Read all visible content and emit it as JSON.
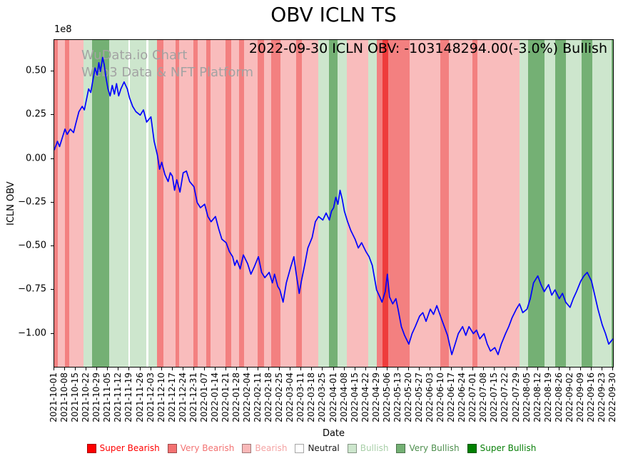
{
  "title": "OBV ICLN TS",
  "annotation": "2022-09-30 ICLN OBV: -103148294.00(-3.0%) Bullish",
  "watermark": {
    "line1": "WuData.io Chart",
    "line2": "Web3 Data & NFT Platform"
  },
  "offset_label": "1e8",
  "axes": {
    "ylabel": "ICLN OBV",
    "xlabel": "Date",
    "yticks": [
      "0.50",
      "0.25",
      "0.00",
      "−0.25",
      "−0.50",
      "−0.75",
      "−1.00"
    ],
    "ytick_values": [
      0.5,
      0.25,
      0,
      -0.25,
      -0.5,
      -0.75,
      -1.0
    ]
  },
  "chart_data": {
    "type": "line",
    "title": "OBV ICLN TS",
    "xlabel": "Date",
    "ylabel": "ICLN OBV",
    "y_scale": "1e8",
    "ylim": [
      -1.19,
      0.68
    ],
    "grid": false,
    "line_color": "#0000ff",
    "x_ticks": [
      "2021-10-01",
      "2021-10-08",
      "2021-10-15",
      "2021-10-22",
      "2021-10-29",
      "2021-11-05",
      "2021-11-12",
      "2021-11-19",
      "2021-11-26",
      "2021-12-03",
      "2021-12-10",
      "2021-12-17",
      "2021-12-24",
      "2021-12-31",
      "2022-01-07",
      "2022-01-14",
      "2022-01-21",
      "2022-01-28",
      "2022-02-04",
      "2022-02-11",
      "2022-02-18",
      "2022-02-25",
      "2022-03-04",
      "2022-03-11",
      "2022-03-18",
      "2022-03-25",
      "2022-04-01",
      "2022-04-08",
      "2022-04-15",
      "2022-04-22",
      "2022-04-29",
      "2022-05-06",
      "2022-05-13",
      "2022-05-20",
      "2022-05-27",
      "2022-06-03",
      "2022-06-10",
      "2022-06-17",
      "2022-06-24",
      "2022-07-01",
      "2022-07-08",
      "2022-07-15",
      "2022-07-22",
      "2022-07-29",
      "2022-08-05",
      "2022-08-12",
      "2022-08-19",
      "2022-08-26",
      "2022-09-02",
      "2022-09-09",
      "2022-09-16",
      "2022-09-23",
      "2022-09-30"
    ],
    "series": [
      {
        "name": "ICLN OBV",
        "last_value": -103148294.0,
        "last_change_pct": -3.0,
        "last_signal": "Bullish",
        "points": [
          [
            0,
            0.05
          ],
          [
            0.3,
            0.1
          ],
          [
            0.5,
            0.07
          ],
          [
            0.8,
            0.13
          ],
          [
            1,
            0.17
          ],
          [
            1.2,
            0.14
          ],
          [
            1.5,
            0.17
          ],
          [
            1.8,
            0.15
          ],
          [
            2,
            0.2
          ],
          [
            2.3,
            0.27
          ],
          [
            2.6,
            0.3
          ],
          [
            2.8,
            0.28
          ],
          [
            3,
            0.34
          ],
          [
            3.2,
            0.4
          ],
          [
            3.4,
            0.38
          ],
          [
            3.6,
            0.45
          ],
          [
            3.8,
            0.52
          ],
          [
            4,
            0.48
          ],
          [
            4.15,
            0.55
          ],
          [
            4.3,
            0.5
          ],
          [
            4.5,
            0.58
          ],
          [
            4.65,
            0.54
          ],
          [
            4.8,
            0.47
          ],
          [
            5,
            0.4
          ],
          [
            5.2,
            0.36
          ],
          [
            5.4,
            0.42
          ],
          [
            5.6,
            0.37
          ],
          [
            5.8,
            0.43
          ],
          [
            6,
            0.36
          ],
          [
            6.2,
            0.4
          ],
          [
            6.5,
            0.44
          ],
          [
            6.8,
            0.4
          ],
          [
            7,
            0.35
          ],
          [
            7.3,
            0.3
          ],
          [
            7.6,
            0.27
          ],
          [
            8,
            0.25
          ],
          [
            8.3,
            0.28
          ],
          [
            8.6,
            0.21
          ],
          [
            9,
            0.24
          ],
          [
            9.3,
            0.1
          ],
          [
            9.6,
            0.02
          ],
          [
            9.8,
            -0.06
          ],
          [
            10,
            -0.02
          ],
          [
            10.3,
            -0.09
          ],
          [
            10.6,
            -0.13
          ],
          [
            10.8,
            -0.08
          ],
          [
            11,
            -0.1
          ],
          [
            11.2,
            -0.18
          ],
          [
            11.4,
            -0.12
          ],
          [
            11.7,
            -0.19
          ],
          [
            12,
            -0.08
          ],
          [
            12.3,
            -0.07
          ],
          [
            12.6,
            -0.13
          ],
          [
            13,
            -0.16
          ],
          [
            13.3,
            -0.25
          ],
          [
            13.6,
            -0.28
          ],
          [
            14,
            -0.26
          ],
          [
            14.3,
            -0.33
          ],
          [
            14.6,
            -0.36
          ],
          [
            15,
            -0.33
          ],
          [
            15.3,
            -0.4
          ],
          [
            15.6,
            -0.46
          ],
          [
            16,
            -0.48
          ],
          [
            16.3,
            -0.53
          ],
          [
            16.6,
            -0.56
          ],
          [
            16.8,
            -0.61
          ],
          [
            17,
            -0.58
          ],
          [
            17.3,
            -0.63
          ],
          [
            17.6,
            -0.55
          ],
          [
            18,
            -0.6
          ],
          [
            18.3,
            -0.66
          ],
          [
            18.6,
            -0.62
          ],
          [
            19,
            -0.56
          ],
          [
            19.3,
            -0.65
          ],
          [
            19.6,
            -0.68
          ],
          [
            20,
            -0.65
          ],
          [
            20.3,
            -0.71
          ],
          [
            20.5,
            -0.66
          ],
          [
            20.8,
            -0.73
          ],
          [
            21,
            -0.75
          ],
          [
            21.3,
            -0.82
          ],
          [
            21.6,
            -0.71
          ],
          [
            22,
            -0.62
          ],
          [
            22.3,
            -0.56
          ],
          [
            22.5,
            -0.65
          ],
          [
            22.8,
            -0.77
          ],
          [
            23,
            -0.7
          ],
          [
            23.3,
            -0.61
          ],
          [
            23.6,
            -0.51
          ],
          [
            24,
            -0.45
          ],
          [
            24.3,
            -0.36
          ],
          [
            24.6,
            -0.33
          ],
          [
            25,
            -0.35
          ],
          [
            25.3,
            -0.31
          ],
          [
            25.6,
            -0.35
          ],
          [
            25.8,
            -0.3
          ],
          [
            26,
            -0.28
          ],
          [
            26.2,
            -0.22
          ],
          [
            26.4,
            -0.26
          ],
          [
            26.6,
            -0.18
          ],
          [
            26.8,
            -0.23
          ],
          [
            27,
            -0.3
          ],
          [
            27.3,
            -0.36
          ],
          [
            27.6,
            -0.41
          ],
          [
            28,
            -0.46
          ],
          [
            28.3,
            -0.51
          ],
          [
            28.6,
            -0.48
          ],
          [
            29,
            -0.53
          ],
          [
            29.3,
            -0.56
          ],
          [
            29.6,
            -0.61
          ],
          [
            30,
            -0.75
          ],
          [
            30.3,
            -0.79
          ],
          [
            30.5,
            -0.82
          ],
          [
            30.8,
            -0.76
          ],
          [
            31,
            -0.66
          ],
          [
            31.2,
            -0.79
          ],
          [
            31.5,
            -0.83
          ],
          [
            31.8,
            -0.8
          ],
          [
            32,
            -0.86
          ],
          [
            32.3,
            -0.96
          ],
          [
            32.6,
            -1.01
          ],
          [
            33,
            -1.06
          ],
          [
            33.3,
            -1
          ],
          [
            33.6,
            -0.96
          ],
          [
            34,
            -0.9
          ],
          [
            34.3,
            -0.88
          ],
          [
            34.6,
            -0.93
          ],
          [
            35,
            -0.86
          ],
          [
            35.3,
            -0.89
          ],
          [
            35.6,
            -0.84
          ],
          [
            36,
            -0.91
          ],
          [
            36.3,
            -0.96
          ],
          [
            36.6,
            -1.01
          ],
          [
            37,
            -1.12
          ],
          [
            37.3,
            -1.06
          ],
          [
            37.6,
            -1
          ],
          [
            38,
            -0.96
          ],
          [
            38.3,
            -1.01
          ],
          [
            38.6,
            -0.96
          ],
          [
            39,
            -1
          ],
          [
            39.3,
            -0.98
          ],
          [
            39.6,
            -1.03
          ],
          [
            40,
            -1
          ],
          [
            40.3,
            -1.06
          ],
          [
            40.6,
            -1.1
          ],
          [
            41,
            -1.08
          ],
          [
            41.3,
            -1.12
          ],
          [
            41.6,
            -1.06
          ],
          [
            42,
            -1
          ],
          [
            42.3,
            -0.96
          ],
          [
            42.6,
            -0.91
          ],
          [
            43,
            -0.86
          ],
          [
            43.3,
            -0.83
          ],
          [
            43.6,
            -0.88
          ],
          [
            44,
            -0.86
          ],
          [
            44.3,
            -0.8
          ],
          [
            44.6,
            -0.71
          ],
          [
            45,
            -0.67
          ],
          [
            45.3,
            -0.72
          ],
          [
            45.6,
            -0.76
          ],
          [
            46,
            -0.72
          ],
          [
            46.3,
            -0.78
          ],
          [
            46.6,
            -0.75
          ],
          [
            47,
            -0.8
          ],
          [
            47.3,
            -0.77
          ],
          [
            47.6,
            -0.82
          ],
          [
            48,
            -0.85
          ],
          [
            48.3,
            -0.8
          ],
          [
            48.6,
            -0.76
          ],
          [
            49,
            -0.7
          ],
          [
            49.3,
            -0.67
          ],
          [
            49.6,
            -0.65
          ],
          [
            50,
            -0.7
          ],
          [
            50.3,
            -0.78
          ],
          [
            50.6,
            -0.86
          ],
          [
            51,
            -0.95
          ],
          [
            51.3,
            -1
          ],
          [
            51.6,
            -1.06
          ],
          [
            52,
            -1.03
          ]
        ]
      }
    ],
    "bands": [
      [
        0,
        0.35,
        "very_bearish"
      ],
      [
        0.35,
        1,
        "bearish"
      ],
      [
        1,
        1.4,
        "very_bearish"
      ],
      [
        1.4,
        2.7,
        "bearish"
      ],
      [
        2.7,
        3.55,
        "bullish"
      ],
      [
        3.55,
        5.1,
        "very_bullish"
      ],
      [
        5.1,
        6.9,
        "bullish"
      ],
      [
        6.9,
        7.05,
        "neutral"
      ],
      [
        7.05,
        8.6,
        "bullish"
      ],
      [
        8.6,
        8.75,
        "neutral"
      ],
      [
        8.75,
        9.55,
        "bullish"
      ],
      [
        9.55,
        10.15,
        "very_bearish"
      ],
      [
        10.15,
        11.3,
        "bearish"
      ],
      [
        11.3,
        11.65,
        "very_bearish"
      ],
      [
        11.65,
        12.95,
        "bearish"
      ],
      [
        12.95,
        13.35,
        "very_bearish"
      ],
      [
        13.35,
        14.15,
        "bearish"
      ],
      [
        14.15,
        14.55,
        "very_bearish"
      ],
      [
        14.55,
        15.95,
        "bearish"
      ],
      [
        15.95,
        16.45,
        "very_bearish"
      ],
      [
        16.45,
        17.2,
        "bearish"
      ],
      [
        17.2,
        17.65,
        "very_bearish"
      ],
      [
        17.65,
        18.95,
        "bearish"
      ],
      [
        18.95,
        19.5,
        "very_bearish"
      ],
      [
        19.5,
        20.2,
        "bearish"
      ],
      [
        20.2,
        21.05,
        "very_bearish"
      ],
      [
        21.05,
        22.5,
        "bearish"
      ],
      [
        22.5,
        23.05,
        "very_bearish"
      ],
      [
        23.05,
        24.6,
        "bearish"
      ],
      [
        24.6,
        25.55,
        "bullish"
      ],
      [
        25.55,
        26.35,
        "very_bullish"
      ],
      [
        26.35,
        27.2,
        "bullish"
      ],
      [
        27.2,
        29.2,
        "bearish"
      ],
      [
        29.2,
        30,
        "bullish"
      ],
      [
        30,
        30.55,
        "very_bearish"
      ],
      [
        30.55,
        31.05,
        "super_bearish"
      ],
      [
        31.05,
        33.1,
        "very_bearish"
      ],
      [
        33.1,
        35.9,
        "bearish"
      ],
      [
        35.9,
        36.7,
        "very_bearish"
      ],
      [
        36.7,
        38.9,
        "bearish"
      ],
      [
        38.9,
        39.4,
        "very_bearish"
      ],
      [
        39.4,
        43.3,
        "bearish"
      ],
      [
        43.3,
        44.1,
        "bullish"
      ],
      [
        44.1,
        45.6,
        "very_bullish"
      ],
      [
        45.6,
        46.6,
        "bullish"
      ],
      [
        46.6,
        47.6,
        "very_bullish"
      ],
      [
        47.6,
        49.1,
        "bullish"
      ],
      [
        49.1,
        50.1,
        "very_bullish"
      ],
      [
        50.1,
        51.9,
        "bullish"
      ],
      [
        51.9,
        52,
        "very_bullish"
      ]
    ],
    "sentiment_colors": {
      "super_bearish": "#ee3b3b",
      "very_bearish": "#f38080",
      "bearish": "#f9bcbc",
      "neutral": "#ffffff",
      "bullish": "#cde6cd",
      "very_bullish": "#74b074",
      "super_bullish": "#1e7d1e"
    },
    "legend": [
      {
        "label": "Super Bearish",
        "swatch": "#ff0000",
        "text": "#ff0000"
      },
      {
        "label": "Very Bearish",
        "swatch": "#f37272",
        "text": "#f37272"
      },
      {
        "label": "Bearish",
        "swatch": "#f9b8b8",
        "text": "#f4a3a3"
      },
      {
        "label": "Neutral",
        "swatch": "#ffffff",
        "text": "#1a1a1a"
      },
      {
        "label": "Bullish",
        "swatch": "#cde6cd",
        "text": "#a8cfa8"
      },
      {
        "label": "Very Bullish",
        "swatch": "#74b074",
        "text": "#4e8f4e"
      },
      {
        "label": "Super Bullish",
        "swatch": "#008000",
        "text": "#0a800a"
      }
    ],
    "legend_position": "bottom"
  }
}
